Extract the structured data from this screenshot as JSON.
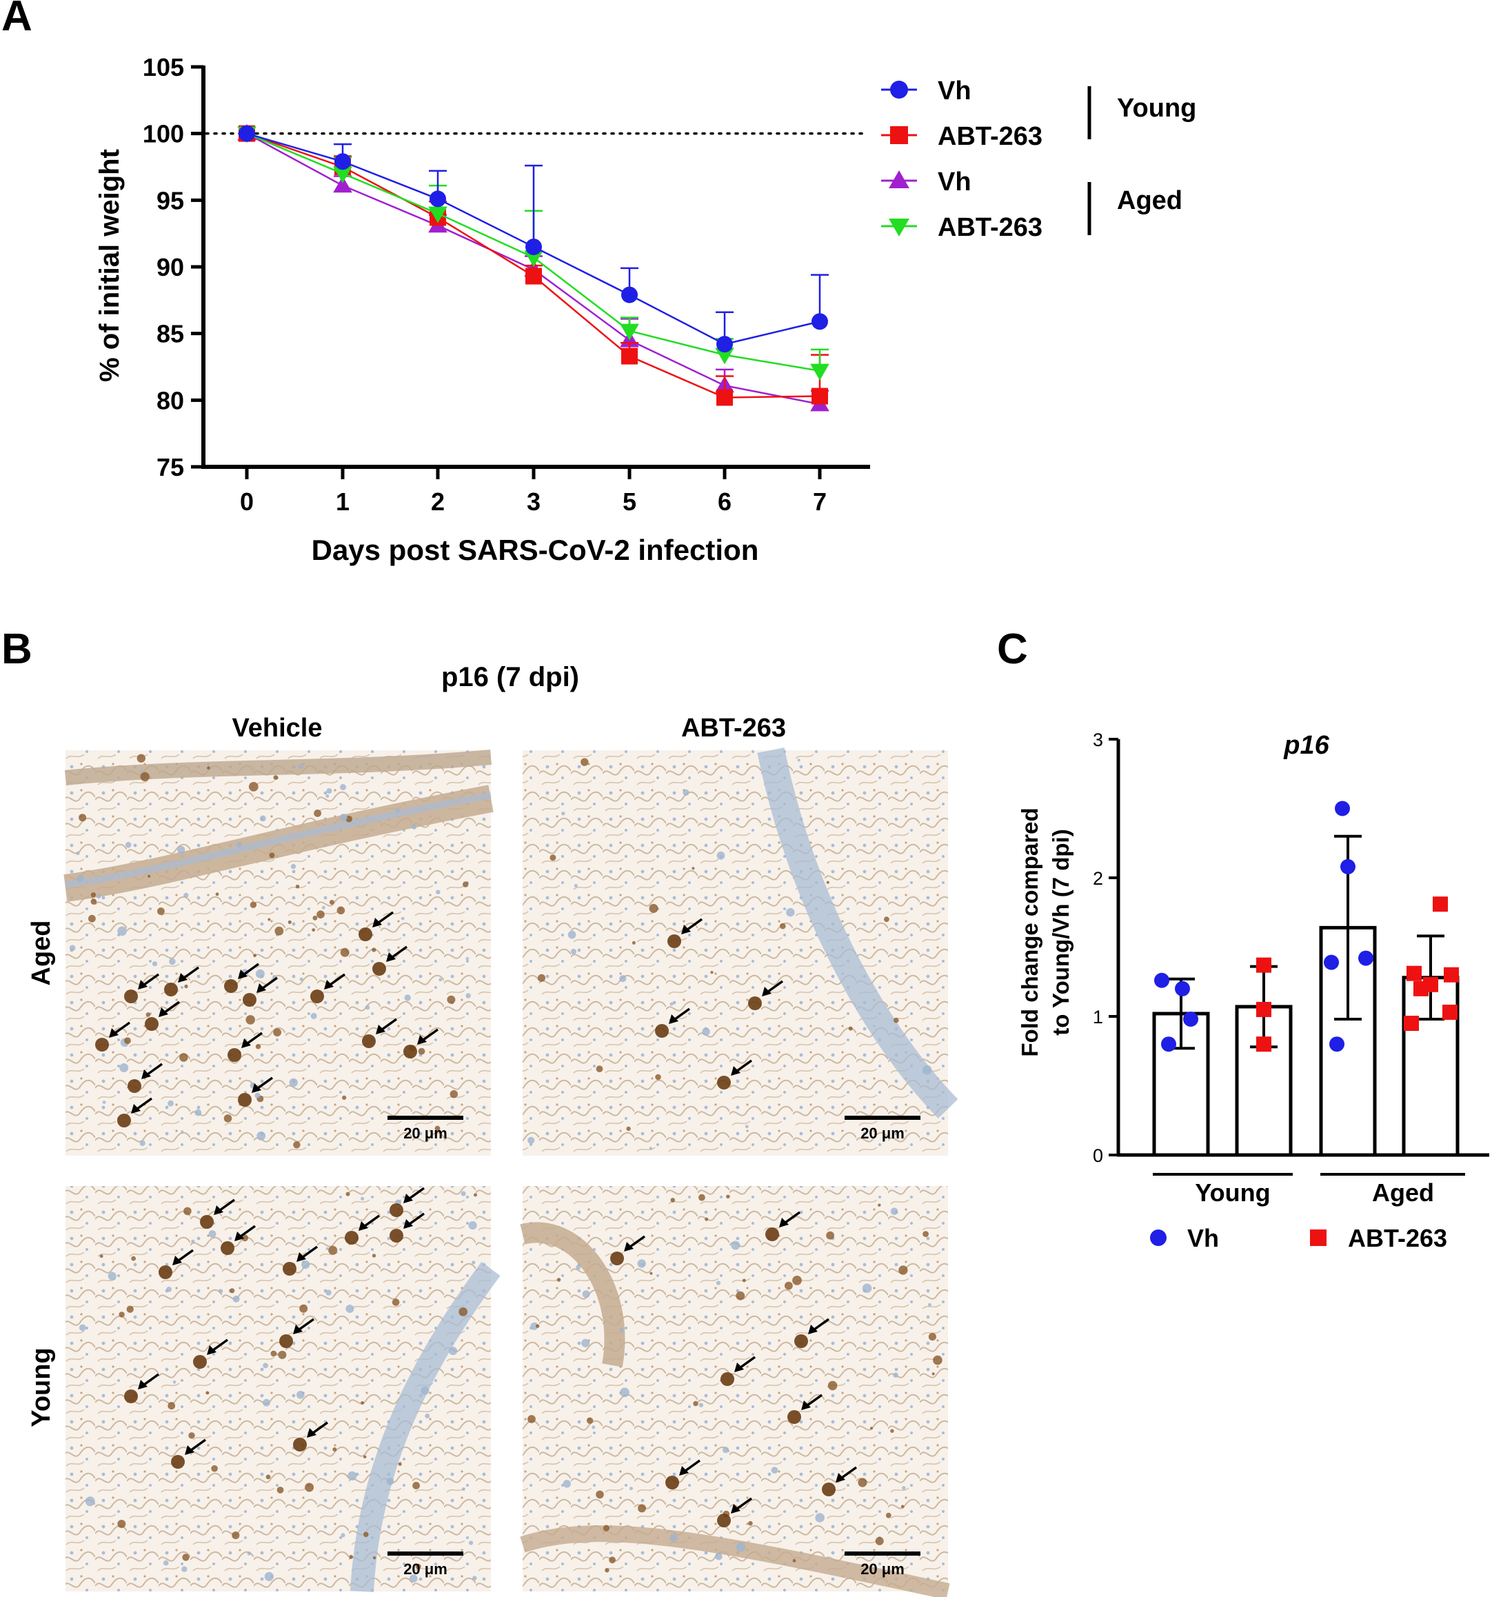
{
  "panels": {
    "A": {
      "letter": "A"
    },
    "B": {
      "letter": "B",
      "title": "p16 (7 dpi)",
      "col_labels": [
        "Vehicle",
        "ABT-263"
      ],
      "row_labels": [
        "Aged",
        "Young"
      ],
      "scale_bar_label": "20 μm"
    },
    "C": {
      "letter": "C"
    }
  },
  "colors": {
    "blue": "#1f1fe6",
    "red": "#ee1111",
    "purple": "#a020d0",
    "green": "#22dd22",
    "tissue_bg": "#f6f0e8",
    "stain": "#7a4a1c",
    "nuclei": "#9db4cf"
  },
  "chart_data": [
    {
      "id": "A",
      "type": "line",
      "title": "",
      "xlabel": "Days post SARS-CoV-2 infection",
      "ylabel": "% of initial weight",
      "categories": [
        "0",
        "1",
        "2",
        "3",
        "5",
        "6",
        "7"
      ],
      "ylim": [
        75,
        105
      ],
      "yticks": [
        75,
        80,
        85,
        90,
        95,
        100,
        105
      ],
      "reference_line": 100,
      "series": [
        {
          "name": "Vh",
          "group": "Young",
          "marker": "circle",
          "color": "#1f1fe6",
          "values": [
            100,
            97.9,
            95.1,
            91.5,
            87.9,
            84.2,
            85.9
          ],
          "err": [
            0,
            1.3,
            2.1,
            6.1,
            2.0,
            2.4,
            3.5
          ]
        },
        {
          "name": "ABT-263",
          "group": "Young",
          "marker": "square",
          "color": "#ee1111",
          "values": [
            100,
            97.5,
            93.7,
            89.3,
            83.3,
            80.2,
            80.3
          ],
          "err": [
            0,
            0.8,
            1.2,
            0.8,
            1.0,
            1.6,
            3.1
          ]
        },
        {
          "name": "Vh",
          "group": "Aged",
          "marker": "triangle-up",
          "color": "#a020d0",
          "values": [
            100,
            96.1,
            93.1,
            89.8,
            84.5,
            81.1,
            79.7
          ],
          "err": [
            0,
            0.7,
            0.8,
            1.0,
            1.6,
            1.2,
            1.0
          ]
        },
        {
          "name": "ABT-263",
          "group": "Aged",
          "marker": "triangle-down",
          "color": "#22dd22",
          "values": [
            100,
            97.0,
            94.0,
            90.7,
            85.2,
            83.4,
            82.2
          ],
          "err": [
            0,
            1.2,
            2.1,
            3.5,
            1.0,
            1.2,
            1.6
          ]
        }
      ],
      "legend_groups": [
        "Young",
        "Aged"
      ],
      "legend_position": "right"
    },
    {
      "id": "C",
      "type": "bar",
      "title": "p16",
      "ylabel_lines": [
        "Fold change compared",
        "to Young/Vh (7 dpi)"
      ],
      "ylim": [
        0,
        3
      ],
      "yticks": [
        0,
        1,
        2,
        3
      ],
      "groups": [
        "Young",
        "Aged"
      ],
      "bars": [
        {
          "group": "Young",
          "treatment": "Vh",
          "mean": 1.02,
          "sd": 0.25,
          "points": [
            1.26,
            1.2,
            0.98,
            0.8
          ],
          "marker": "circle",
          "color": "#1f1fe6"
        },
        {
          "group": "Young",
          "treatment": "ABT-263",
          "mean": 1.07,
          "sd": 0.29,
          "points": [
            1.37,
            1.05,
            0.8
          ],
          "marker": "square",
          "color": "#ee1111"
        },
        {
          "group": "Aged",
          "treatment": "Vh",
          "mean": 1.64,
          "sd": 0.66,
          "points": [
            2.5,
            2.08,
            1.42,
            1.39,
            0.8
          ],
          "marker": "circle",
          "color": "#1f1fe6"
        },
        {
          "group": "Aged",
          "treatment": "ABT-263",
          "mean": 1.28,
          "sd": 0.3,
          "points": [
            1.81,
            1.31,
            1.3,
            1.23,
            1.2,
            1.03,
            0.95
          ],
          "marker": "square",
          "color": "#ee1111"
        }
      ],
      "legend": [
        {
          "name": "Vh",
          "marker": "circle",
          "color": "#1f1fe6"
        },
        {
          "name": "ABT-263",
          "marker": "square",
          "color": "#ee1111"
        }
      ],
      "legend_position": "bottom"
    }
  ]
}
